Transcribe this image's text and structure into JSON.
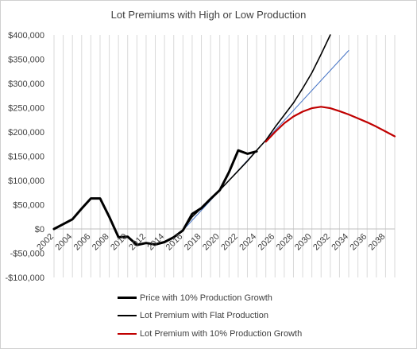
{
  "chart_data": {
    "type": "line",
    "title": "Lot Premiums with High or Low Production",
    "ylim": [
      -100000,
      400000
    ],
    "xlim": [
      2002,
      2039
    ],
    "y_ticks": [
      {
        "value": 400000,
        "label": "$400,000"
      },
      {
        "value": 350000,
        "label": "$350,000"
      },
      {
        "value": 300000,
        "label": "$300,000"
      },
      {
        "value": 250000,
        "label": "$250,000"
      },
      {
        "value": 200000,
        "label": "$200,000"
      },
      {
        "value": 150000,
        "label": "$150,000"
      },
      {
        "value": 100000,
        "label": "$100,000"
      },
      {
        "value": 50000,
        "label": "$50,000"
      },
      {
        "value": 0,
        "label": "$0"
      },
      {
        "value": -50000,
        "label": "-$50,000"
      },
      {
        "value": -100000,
        "label": "-$100,000"
      }
    ],
    "x_ticks": [
      "2002",
      "2004",
      "2006",
      "2008",
      "2010",
      "2012",
      "2014",
      "2016",
      "2018",
      "2020",
      "2022",
      "2024",
      "2026",
      "2028",
      "2030",
      "2032",
      "2034",
      "2036",
      "2038"
    ],
    "grid": "vertical",
    "legend_position": "bottom",
    "series": [
      {
        "name": "Price with 10% Production Growth",
        "color": "#000000",
        "style": "thick",
        "x": [
          2002,
          2003,
          2004,
          2005,
          2006,
          2007,
          2008,
          2009,
          2010,
          2011,
          2012,
          2013,
          2014,
          2015,
          2016,
          2017,
          2018,
          2019,
          2020,
          2021,
          2022,
          2023,
          2024
        ],
        "y": [
          0,
          10000,
          20000,
          42000,
          63000,
          63000,
          25000,
          -17000,
          -16000,
          -33000,
          -29000,
          -32000,
          -27000,
          -17000,
          -3000,
          31000,
          43000,
          62000,
          80000,
          117000,
          162000,
          155000,
          160000
        ]
      },
      {
        "name": "Lot Premium with Flat Production",
        "color": "#000000",
        "style": "thin",
        "x": [
          2016,
          2017,
          2018,
          2019,
          2020,
          2021,
          2022,
          2023,
          2024,
          2025,
          2026,
          2027,
          2028,
          2029,
          2030,
          2031,
          2032
        ],
        "y": [
          -3000,
          25000,
          43000,
          62000,
          80000,
          100000,
          120000,
          140000,
          162000,
          183000,
          210000,
          235000,
          260000,
          290000,
          322000,
          360000,
          403000
        ]
      },
      {
        "name": "Trend",
        "color": "#4472c4",
        "style": "trend",
        "x": [
          2016,
          2034
        ],
        "y": [
          -3000,
          368000
        ]
      },
      {
        "name": "Lot Premium with 10% Production Growth",
        "color": "#c00000",
        "style": "medium",
        "x": [
          2025,
          2026,
          2027,
          2028,
          2029,
          2030,
          2031,
          2032,
          2033,
          2034,
          2035,
          2036,
          2037,
          2038,
          2039
        ],
        "y": [
          180000,
          200000,
          218000,
          232000,
          242000,
          249000,
          252000,
          249000,
          243000,
          236000,
          228000,
          220000,
          211000,
          201000,
          191000
        ]
      }
    ]
  },
  "legend": {
    "items": [
      {
        "label": "Price with 10% Production Growth",
        "color": "#000000",
        "weight": "thick"
      },
      {
        "label": "Lot Premium with Flat Production",
        "color": "#000000",
        "weight": "thin"
      },
      {
        "label": "Lot Premium with 10% Production Growth",
        "color": "#c00000",
        "weight": "medium"
      }
    ]
  }
}
